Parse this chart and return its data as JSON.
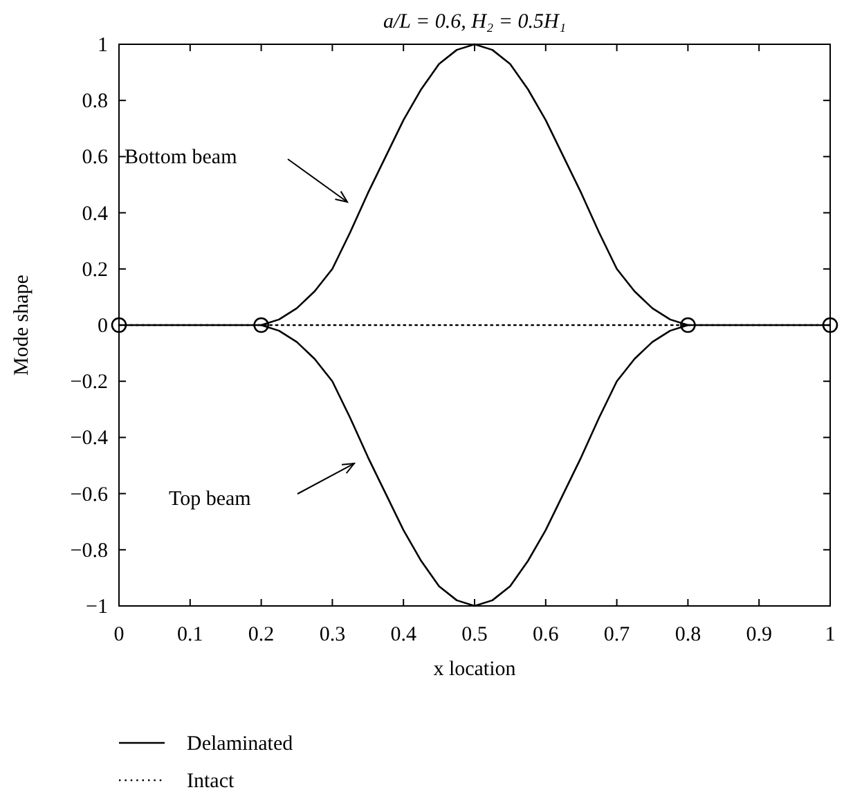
{
  "chart_data": {
    "type": "line",
    "title": "a/L = 0.6, H₂ = 0.5H₁",
    "xlabel": "x location",
    "ylabel": "Mode shape",
    "xlim": [
      0,
      1
    ],
    "ylim": [
      -1,
      1
    ],
    "xticks": [
      0,
      0.1,
      0.2,
      0.3,
      0.4,
      0.5,
      0.6,
      0.7,
      0.8,
      0.9,
      1
    ],
    "yticks": [
      -1,
      -0.8,
      -0.6,
      -0.4,
      -0.2,
      0,
      0.2,
      0.4,
      0.6,
      0.8,
      1
    ],
    "grid": false,
    "legend": "bottom left",
    "annotations": [
      "Bottom beam",
      "Top beam"
    ],
    "series": [
      {
        "name": "Delaminated",
        "color": "#000000",
        "line_style": "solid",
        "x": [
          0,
          0.1,
          0.2,
          0.225,
          0.25,
          0.275,
          0.3,
          0.325,
          0.35,
          0.375,
          0.4,
          0.425,
          0.45,
          0.475,
          0.5,
          0.525,
          0.55,
          0.575,
          0.6,
          0.625,
          0.65,
          0.675,
          0.7,
          0.725,
          0.75,
          0.775,
          0.8,
          0.9,
          1
        ],
        "values": [
          0,
          0,
          0,
          0.02,
          0.06,
          0.12,
          0.2,
          0.33,
          0.47,
          0.6,
          0.73,
          0.84,
          0.93,
          0.98,
          1,
          0.98,
          0.93,
          0.84,
          0.73,
          0.6,
          0.47,
          0.33,
          0.2,
          0.12,
          0.06,
          0.02,
          0,
          0,
          0
        ]
      },
      {
        "color": "#000000",
        "line_style": "solid",
        "x": [
          0.2,
          0.225,
          0.25,
          0.275,
          0.3,
          0.325,
          0.35,
          0.375,
          0.4,
          0.425,
          0.45,
          0.475,
          0.5,
          0.525,
          0.55,
          0.575,
          0.6,
          0.625,
          0.65,
          0.675,
          0.7,
          0.725,
          0.75,
          0.775,
          0.8
        ],
        "values": [
          0,
          -0.02,
          -0.06,
          -0.12,
          -0.2,
          -0.33,
          -0.47,
          -0.6,
          -0.73,
          -0.84,
          -0.93,
          -0.98,
          -1,
          -0.98,
          -0.93,
          -0.84,
          -0.73,
          -0.6,
          -0.47,
          -0.33,
          -0.2,
          -0.12,
          -0.06,
          -0.02,
          0
        ]
      },
      {
        "name": "Intact",
        "color": "#000000",
        "line_style": "dotted",
        "x": [
          0,
          1
        ],
        "values": [
          0,
          0
        ]
      },
      {
        "type": "scatter",
        "color": "#000000",
        "marker": "circle",
        "x": [
          0,
          0.2,
          0.8,
          1
        ],
        "values": [
          0,
          0,
          0,
          0
        ]
      }
    ]
  }
}
